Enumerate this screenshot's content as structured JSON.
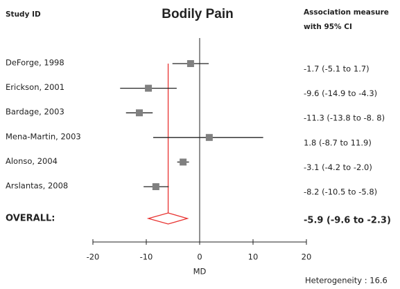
{
  "chart_data": {
    "type": "forest",
    "title": "Bodily Pain",
    "left_header": "Study ID",
    "right_header": [
      "Association measure",
      "with 95% CI"
    ],
    "categories": [
      "DeForge, 1998",
      "Erickson, 2001",
      "Bardage, 2003",
      "Mena-Martin, 2003",
      "Alonso, 2004",
      "Arslantas, 2008"
    ],
    "values": [
      -1.7,
      -9.6,
      -11.3,
      1.8,
      -3.1,
      -8.2
    ],
    "lower": [
      -5.1,
      -14.9,
      -13.8,
      -8.7,
      -4.2,
      -10.5
    ],
    "upper": [
      1.7,
      -4.3,
      -8.8,
      11.9,
      -2.0,
      -5.8
    ],
    "value_labels": [
      "-1.7 (-5.1  to  1.7)",
      "-9.6 (-14.9  to  -4.3)",
      "-11.3  (-13.8  to  -8. 8)",
      "1.8 (-8.7  to  11.9)",
      "-3.1 (-4.2  to  -2.0)",
      "-8.2 (-10.5  to  -5.8)"
    ],
    "overall": {
      "label": "OVERALL:",
      "value": -5.9,
      "lower": -9.6,
      "upper": -2.3,
      "value_label": "-5.9 (-9.6 to -2.3)"
    },
    "color": "#808080",
    "overall_color": "#e8312f",
    "xlim": [
      -20,
      20
    ],
    "xticks": [
      -20,
      -10,
      0,
      10,
      20
    ],
    "xlabel": "MD",
    "footnote": "Heterogeneity : 16.6"
  }
}
